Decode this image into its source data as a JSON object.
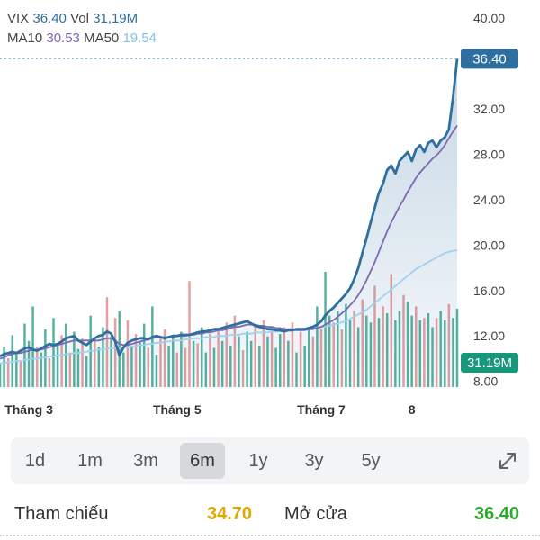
{
  "legend": {
    "symbol": "VIX",
    "price": "36.40",
    "vol_label": "Vol",
    "vol": "31,19M",
    "ma10_label": "MA10",
    "ma10": "30.53",
    "ma50_label": "MA50",
    "ma50": "19.54"
  },
  "price_tag": "36.40",
  "volume_tag": "31.19M",
  "ranges": [
    "1d",
    "1m",
    "3m",
    "6m",
    "1y",
    "3y",
    "5y"
  ],
  "active_range": "6m",
  "stats": {
    "ref_label": "Tham chiếu",
    "ref_value": "34.70",
    "open_label": "Mở cửa",
    "open_value": "36.40"
  },
  "colors": {
    "price": "#2f6fa0",
    "ma10": "#7e67b3",
    "ma50": "#9fd2ee",
    "up": "#3aa58f",
    "down": "#e38f8f",
    "ref": "#e0a800",
    "open": "#2bab2b",
    "volume_tag": "#17977c"
  },
  "chart_data": {
    "type": "line",
    "yticks": [
      "40.00",
      "32.00",
      "28.00",
      "24.00",
      "20.00",
      "16.00",
      "12.00",
      "8.00"
    ],
    "yticks_values": [
      40,
      32,
      28,
      24,
      20,
      16,
      12,
      8
    ],
    "ylim": [
      7.5,
      40
    ],
    "xticks": [
      "Tháng 3",
      "Tháng 5",
      "Tháng 7",
      "8"
    ],
    "xticks_index": [
      7,
      43,
      78,
      100
    ],
    "grid": false,
    "series": [
      {
        "name": "VIX",
        "values": [
          10.2,
          10.4,
          10.5,
          10.6,
          10.5,
          10.7,
          10.9,
          11.0,
          10.8,
          10.7,
          10.9,
          11.1,
          11.3,
          11.2,
          11.3,
          11.5,
          11.8,
          11.9,
          12.0,
          11.6,
          11.4,
          11.2,
          11.5,
          11.8,
          12.0,
          12.1,
          12.4,
          12.2,
          11.5,
          10.3,
          11.0,
          11.4,
          11.6,
          11.7,
          11.8,
          11.8,
          11.7,
          11.9,
          12.0,
          11.9,
          11.8,
          11.9,
          12.0,
          12.0,
          12.1,
          12.1,
          12.1,
          12.2,
          12.3,
          12.4,
          12.4,
          12.5,
          12.6,
          12.6,
          12.7,
          12.8,
          12.9,
          13.0,
          13.1,
          13.2,
          13.3,
          13.1,
          12.9,
          12.8,
          12.7,
          12.6,
          12.6,
          12.5,
          12.5,
          12.4,
          12.5,
          12.5,
          12.6,
          12.6,
          12.6,
          12.7,
          12.8,
          13.0,
          13.3,
          13.8,
          14.2,
          14.5,
          14.9,
          15.3,
          15.7,
          16.2,
          17.0,
          18.0,
          19.3,
          20.6,
          22.0,
          23.3,
          24.6,
          25.4,
          26.6,
          27.0,
          26.3,
          27.4,
          27.8,
          28.2,
          27.4,
          28.4,
          28.8,
          28.2,
          29.0,
          29.2,
          28.6,
          29.2,
          29.5,
          30.2,
          33.0,
          36.4
        ],
        "color": "#2f6fa0"
      },
      {
        "name": "MA10",
        "values": [
          10.0,
          10.1,
          10.3,
          10.4,
          10.5,
          10.5,
          10.6,
          10.7,
          10.8,
          10.8,
          10.8,
          10.9,
          11.0,
          11.1,
          11.2,
          11.3,
          11.4,
          11.5,
          11.6,
          11.6,
          11.6,
          11.6,
          11.6,
          11.6,
          11.6,
          11.7,
          11.8,
          11.8,
          11.6,
          11.3,
          11.2,
          11.2,
          11.3,
          11.4,
          11.5,
          11.6,
          11.7,
          11.8,
          11.9,
          11.9,
          11.9,
          11.9,
          11.9,
          12.0,
          12.0,
          12.0,
          12.1,
          12.1,
          12.2,
          12.2,
          12.3,
          12.3,
          12.4,
          12.5,
          12.5,
          12.6,
          12.7,
          12.8,
          12.8,
          12.9,
          13.0,
          13.0,
          13.0,
          12.9,
          12.9,
          12.8,
          12.8,
          12.7,
          12.7,
          12.6,
          12.6,
          12.6,
          12.5,
          12.5,
          12.5,
          12.6,
          12.6,
          12.7,
          12.8,
          13.0,
          13.2,
          13.4,
          13.7,
          14.0,
          14.3,
          14.7,
          15.1,
          15.6,
          16.2,
          16.9,
          17.7,
          18.5,
          19.4,
          20.3,
          21.2,
          22.0,
          22.7,
          23.4,
          24.0,
          24.7,
          25.3,
          25.9,
          26.4,
          26.8,
          27.2,
          27.6,
          27.9,
          28.3,
          28.8,
          29.4,
          30.0,
          30.53
        ],
        "color": "#7e67b3"
      },
      {
        "name": "MA50",
        "values": [
          9.6,
          9.6,
          9.7,
          9.7,
          9.8,
          9.8,
          9.9,
          9.9,
          10.0,
          10.0,
          10.1,
          10.1,
          10.2,
          10.2,
          10.3,
          10.3,
          10.4,
          10.4,
          10.5,
          10.5,
          10.6,
          10.6,
          10.7,
          10.7,
          10.8,
          10.8,
          10.9,
          10.9,
          10.9,
          10.9,
          11.0,
          11.0,
          11.1,
          11.1,
          11.2,
          11.2,
          11.3,
          11.3,
          11.4,
          11.4,
          11.5,
          11.5,
          11.6,
          11.6,
          11.6,
          11.7,
          11.7,
          11.8,
          11.8,
          11.8,
          11.9,
          11.9,
          11.9,
          12.0,
          12.0,
          12.0,
          12.1,
          12.1,
          12.1,
          12.2,
          12.2,
          12.2,
          12.3,
          12.3,
          12.3,
          12.3,
          12.4,
          12.4,
          12.4,
          12.4,
          12.5,
          12.5,
          12.5,
          12.5,
          12.6,
          12.6,
          12.7,
          12.7,
          12.8,
          12.8,
          12.9,
          13.0,
          13.1,
          13.2,
          13.3,
          13.5,
          13.7,
          13.9,
          14.1,
          14.3,
          14.6,
          14.9,
          15.2,
          15.5,
          15.8,
          16.1,
          16.4,
          16.7,
          17.0,
          17.3,
          17.6,
          17.9,
          18.1,
          18.3,
          18.5,
          18.7,
          18.9,
          19.1,
          19.3,
          19.4,
          19.5,
          19.54
        ],
        "color": "#9fd2ee"
      }
    ],
    "volume": {
      "values": [
        0.2,
        0.35,
        0.25,
        0.45,
        0.3,
        0.22,
        0.55,
        0.4,
        0.7,
        0.35,
        0.3,
        0.5,
        0.25,
        0.6,
        0.38,
        0.45,
        0.55,
        0.3,
        0.48,
        0.33,
        0.42,
        0.27,
        0.62,
        0.4,
        0.35,
        0.52,
        0.78,
        0.44,
        0.6,
        0.66,
        0.3,
        0.58,
        0.36,
        0.46,
        0.4,
        0.55,
        0.34,
        0.7,
        0.28,
        0.42,
        0.5,
        0.36,
        0.44,
        0.3,
        0.48,
        0.34,
        0.92,
        0.4,
        0.38,
        0.52,
        0.3,
        0.46,
        0.34,
        0.5,
        0.4,
        0.56,
        0.36,
        0.62,
        0.44,
        0.32,
        0.48,
        0.4,
        0.54,
        0.36,
        0.58,
        0.44,
        0.5,
        0.34,
        0.46,
        0.52,
        0.4,
        0.56,
        0.3,
        0.48,
        0.36,
        0.52,
        0.44,
        0.7,
        0.5,
        1.0,
        0.62,
        0.56,
        0.66,
        0.5,
        0.72,
        0.58,
        0.66,
        0.52,
        0.76,
        0.62,
        0.56,
        0.88,
        0.6,
        0.7,
        0.64,
        0.98,
        0.58,
        0.66,
        0.8,
        0.74,
        0.62,
        0.7,
        0.58,
        0.6,
        0.64,
        0.52,
        0.6,
        0.66,
        0.58,
        0.72,
        0.6,
        0.68
      ],
      "up": [
        1,
        1,
        0,
        1,
        1,
        0,
        1,
        1,
        1,
        0,
        1,
        1,
        0,
        1,
        1,
        0,
        1,
        0,
        1,
        1,
        0,
        1,
        1,
        0,
        1,
        1,
        0,
        1,
        0,
        1,
        1,
        0,
        1,
        0,
        1,
        1,
        0,
        1,
        1,
        0,
        0,
        1,
        1,
        0,
        1,
        0,
        0,
        1,
        0,
        1,
        1,
        0,
        1,
        0,
        1,
        0,
        1,
        0,
        1,
        0,
        1,
        1,
        0,
        1,
        0,
        1,
        0,
        1,
        1,
        0,
        1,
        0,
        1,
        0,
        1,
        1,
        0,
        1,
        0,
        1,
        1,
        0,
        1,
        0,
        1,
        1,
        0,
        1,
        0,
        1,
        1,
        0,
        1,
        0,
        1,
        0,
        1,
        1,
        0,
        1,
        1,
        0,
        1,
        0,
        1,
        1,
        0,
        1,
        1,
        0,
        1,
        1
      ]
    }
  }
}
